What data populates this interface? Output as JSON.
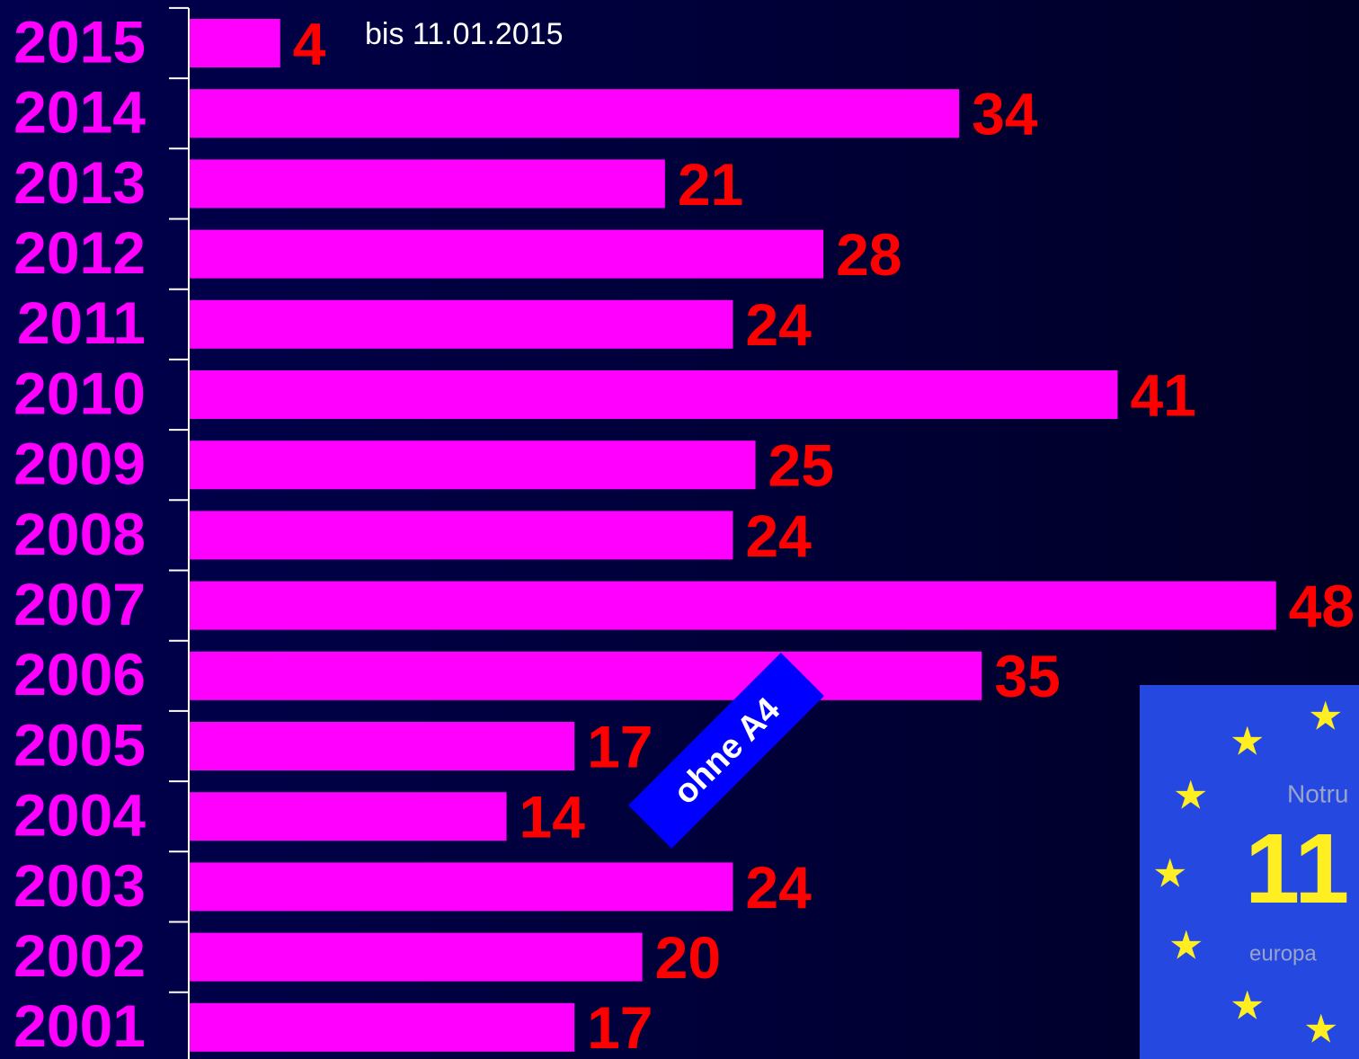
{
  "chart_data": {
    "type": "bar",
    "orientation": "horizontal",
    "categories": [
      "2015",
      "2014",
      "2013",
      "2012",
      "2011",
      "2010",
      "2009",
      "2008",
      "2007",
      "2006",
      "2005",
      "2004",
      "2003",
      "2002",
      "2001"
    ],
    "values": [
      4,
      34,
      21,
      28,
      24,
      41,
      25,
      24,
      48,
      35,
      17,
      14,
      24,
      20,
      17
    ],
    "color": "#ff00ff",
    "label_color": "#ff0000",
    "category_color": "#ff00ff",
    "xlim": [
      0,
      52
    ],
    "annotations": [
      "bis 11.01.2015",
      "ohne A4"
    ],
    "emblem": {
      "texts": [
        "Notru",
        "11",
        "europa"
      ]
    }
  }
}
